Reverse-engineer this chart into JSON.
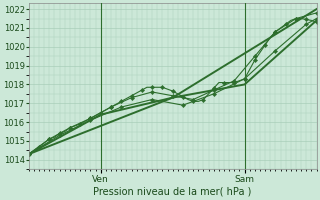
{
  "title": "Pression niveau de la mer( hPa )",
  "ylabel_ticks": [
    1014,
    1015,
    1016,
    1017,
    1018,
    1019,
    1020,
    1021,
    1022
  ],
  "ylim": [
    1013.5,
    1022.3
  ],
  "xlim": [
    0,
    56
  ],
  "xtick_positions": [
    14,
    42
  ],
  "xtick_labels": [
    "Ven",
    "Sam"
  ],
  "vline_positions": [
    14,
    42
  ],
  "bg_color": "#cce8d8",
  "grid_color": "#aacfba",
  "line_color": "#2d6e2d",
  "series1_x": [
    0,
    1,
    2,
    3,
    4,
    5,
    6,
    7,
    8,
    9,
    10,
    11,
    12,
    13,
    14,
    15,
    16,
    17,
    18,
    19,
    20,
    21,
    22,
    23,
    24,
    25,
    26,
    27,
    28,
    29,
    30,
    31,
    32,
    33,
    34,
    35,
    36,
    37,
    38,
    39,
    40,
    41,
    42,
    43,
    44,
    45,
    46,
    47,
    48,
    49,
    50,
    51,
    52,
    53,
    54,
    55,
    56
  ],
  "series1_y": [
    1014.3,
    1014.5,
    1014.7,
    1014.9,
    1015.1,
    1015.2,
    1015.4,
    1015.5,
    1015.7,
    1015.8,
    1015.9,
    1016.05,
    1016.2,
    1016.35,
    1016.5,
    1016.65,
    1016.8,
    1016.95,
    1017.1,
    1017.25,
    1017.4,
    1017.55,
    1017.7,
    1017.85,
    1017.85,
    1017.85,
    1017.85,
    1017.75,
    1017.65,
    1017.5,
    1017.35,
    1017.2,
    1017.1,
    1017.1,
    1017.2,
    1017.5,
    1017.8,
    1018.1,
    1018.1,
    1018.1,
    1018.1,
    1018.2,
    1018.3,
    1018.8,
    1019.3,
    1019.7,
    1020.1,
    1020.5,
    1020.8,
    1021.0,
    1021.2,
    1021.4,
    1021.5,
    1021.5,
    1021.45,
    1021.4,
    1021.3
  ],
  "series2_x": [
    0,
    4,
    8,
    12,
    16,
    20,
    24,
    28,
    32,
    36,
    40,
    44,
    48,
    52,
    56
  ],
  "series2_y": [
    1014.3,
    1015.1,
    1015.7,
    1016.2,
    1016.8,
    1017.3,
    1017.6,
    1017.4,
    1017.2,
    1017.7,
    1018.2,
    1019.5,
    1020.8,
    1021.5,
    1021.8
  ],
  "series3_x": [
    0,
    6,
    12,
    18,
    24,
    30,
    36,
    42,
    48,
    54,
    56
  ],
  "series3_y": [
    1014.3,
    1015.3,
    1016.1,
    1016.8,
    1017.2,
    1016.9,
    1017.5,
    1018.3,
    1019.8,
    1021.2,
    1021.5
  ],
  "series4_x": [
    0,
    14,
    28,
    42,
    56
  ],
  "series4_y": [
    1014.3,
    1016.4,
    1017.3,
    1018.0,
    1021.4
  ],
  "series5_x": [
    0,
    28,
    56
  ],
  "series5_y": [
    1014.3,
    1017.3,
    1022.0
  ]
}
